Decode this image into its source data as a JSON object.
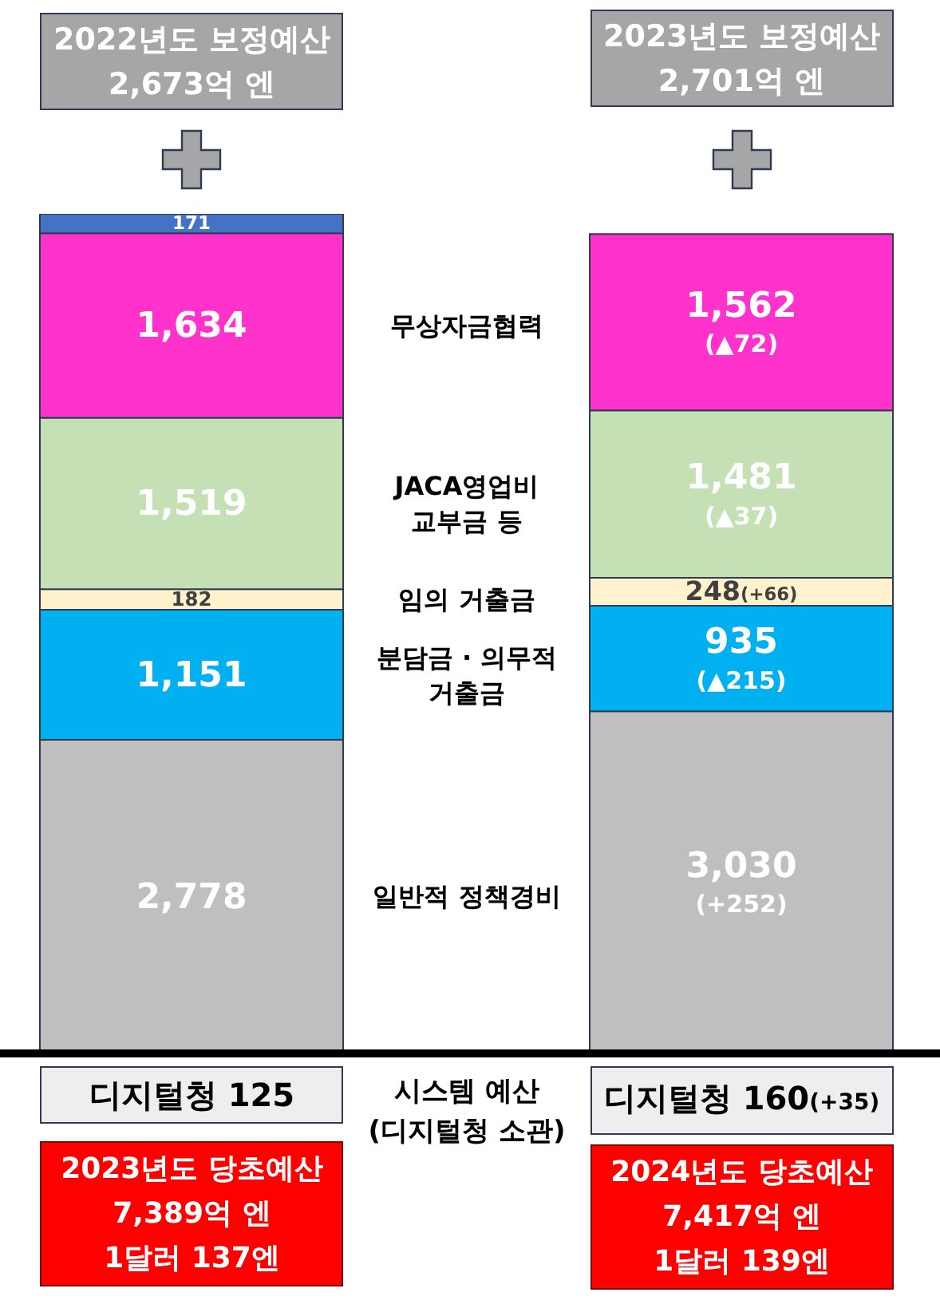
{
  "chart_data": {
    "type": "bar",
    "stacked": true,
    "categories": [
      null,
      null
    ],
    "tick_labels": false,
    "series": [
      {
        "name": "일반적 정책경비",
        "color": "#bfbfbf",
        "values": [
          2778,
          3030
        ],
        "value_labels": [
          "2,778",
          "3,030\n(+252)"
        ]
      },
      {
        "name": "분담금 · 의무적 거출금",
        "color": "#00b0f0",
        "values": [
          1151,
          935
        ],
        "value_labels": [
          "1,151",
          "935\n(▲215)"
        ]
      },
      {
        "name": "임의 거출금",
        "color": "#fff2cc",
        "values": [
          182,
          248
        ],
        "value_labels": [
          "182",
          "248(+66)"
        ]
      },
      {
        "name": "JACA영업비 교부금 등",
        "color": "#c5e0b4",
        "values": [
          1519,
          1481
        ],
        "value_labels": [
          "1,519",
          "1,481\n(▲37)"
        ]
      },
      {
        "name": "무상자금협력",
        "color": "#ff33cc",
        "values": [
          1634,
          1562
        ],
        "value_labels": [
          "1,634",
          "1,562\n(▲72)"
        ]
      },
      {
        "color": "#4472c4",
        "values": [
          171,
          null
        ],
        "value_labels": [
          "171",
          null
        ]
      }
    ],
    "annotations": [
      "2022년도 보정예산\n2,673억 엔",
      "2023년도 보정예산\n2,701억 엔",
      "디지털청 125",
      "시스템 예산\n(디지털청 소관)",
      "디지털청 160(+35)",
      "2023년도 당초예산\n7,389억 엔\n1달러 137엔",
      "2024년도 당초예산\n7,417억 엔\n1달러 139엔"
    ]
  }
}
